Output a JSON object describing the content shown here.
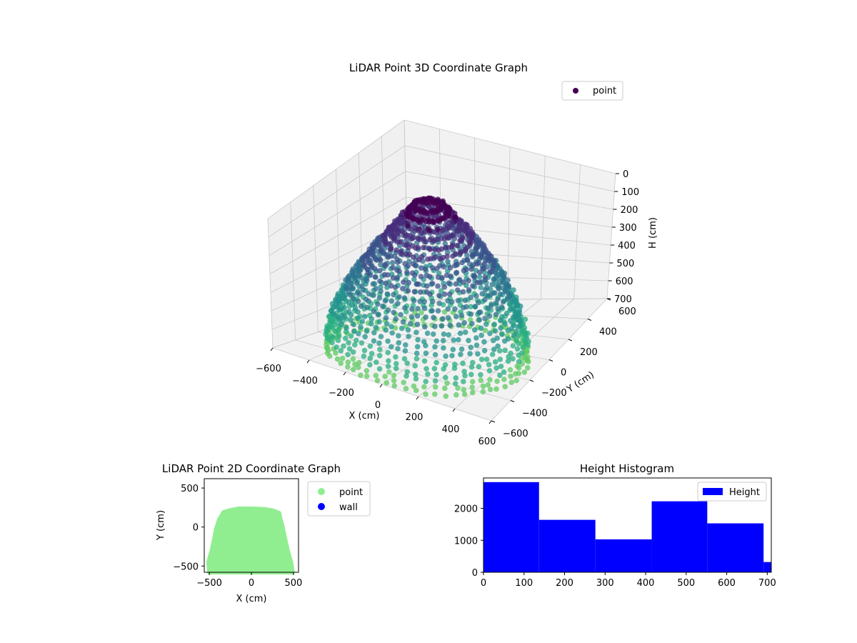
{
  "chart_data": [
    {
      "type": "scatter",
      "title": "LiDAR Point 3D Coordinate Graph",
      "xlabel": "X (cm)",
      "ylabel": "Y (cm)",
      "zlabel": "H (cm)",
      "xlim": [
        -600,
        600
      ],
      "ylim": [
        -600,
        600
      ],
      "zlim": [
        0,
        700
      ],
      "x_ticks": [
        -600,
        -400,
        -200,
        0,
        200,
        400,
        600
      ],
      "y_ticks": [
        -600,
        -400,
        -200,
        0,
        200,
        400,
        600
      ],
      "z_ticks": [
        0,
        100,
        200,
        300,
        400,
        500,
        600,
        700
      ],
      "z_inverted": true,
      "grid": true,
      "legend": {
        "position": "top-right",
        "entries": [
          "point"
        ]
      },
      "colormap": "viridis",
      "series": [
        {
          "name": "point",
          "color": "#440154",
          "description_shape": "dome",
          "x_extent": [
            -520,
            520
          ],
          "y_extent": [
            -560,
            240
          ],
          "h_extent": [
            0,
            710
          ]
        }
      ]
    },
    {
      "type": "scatter",
      "title": "LiDAR Point 2D Coordinate Graph",
      "xlabel": "X (cm)",
      "ylabel": "Y (cm)",
      "xlim": [
        -560,
        560
      ],
      "ylim": [
        -580,
        620
      ],
      "x_ticks": [
        -500,
        0,
        500
      ],
      "y_ticks": [
        -500,
        0,
        500
      ],
      "legend": {
        "position": "outside-right",
        "entries": [
          "point",
          "wall"
        ]
      },
      "series": [
        {
          "name": "point",
          "color": "#90ee90",
          "outline": [
            [
              -500,
              -580
            ],
            [
              -510,
              -450
            ],
            [
              -470,
              -300
            ],
            [
              -440,
              -150
            ],
            [
              -420,
              -30
            ],
            [
              -380,
              100
            ],
            [
              -330,
              190
            ],
            [
              -250,
              215
            ],
            [
              -150,
              235
            ],
            [
              0,
              235
            ],
            [
              150,
              230
            ],
            [
              260,
              210
            ],
            [
              330,
              180
            ],
            [
              340,
              120
            ],
            [
              370,
              0
            ],
            [
              400,
              -150
            ],
            [
              430,
              -300
            ],
            [
              470,
              -450
            ],
            [
              490,
              -580
            ]
          ]
        },
        {
          "name": "wall",
          "color": "#0000ff",
          "points": []
        }
      ]
    },
    {
      "type": "bar",
      "title": "Height Histogram",
      "xlabel": "",
      "ylabel": "",
      "xlim": [
        0,
        710
      ],
      "ylim": [
        0,
        2950
      ],
      "x_ticks": [
        0,
        100,
        200,
        300,
        400,
        500,
        600,
        700
      ],
      "y_ticks": [
        0,
        1000,
        2000
      ],
      "legend": {
        "position": "top-right",
        "entries": [
          "Height"
        ]
      },
      "series": [
        {
          "name": "Height",
          "color": "#0000ff",
          "bins": [
            {
              "x0": 0,
              "x1": 137,
              "value": 2820
            },
            {
              "x0": 137,
              "x1": 276,
              "value": 1640
            },
            {
              "x0": 276,
              "x1": 415,
              "value": 1030
            },
            {
              "x0": 415,
              "x1": 552,
              "value": 2220
            },
            {
              "x0": 552,
              "x1": 691,
              "value": 1530
            },
            {
              "x0": 691,
              "x1": 710,
              "value": 320
            }
          ]
        }
      ]
    }
  ]
}
